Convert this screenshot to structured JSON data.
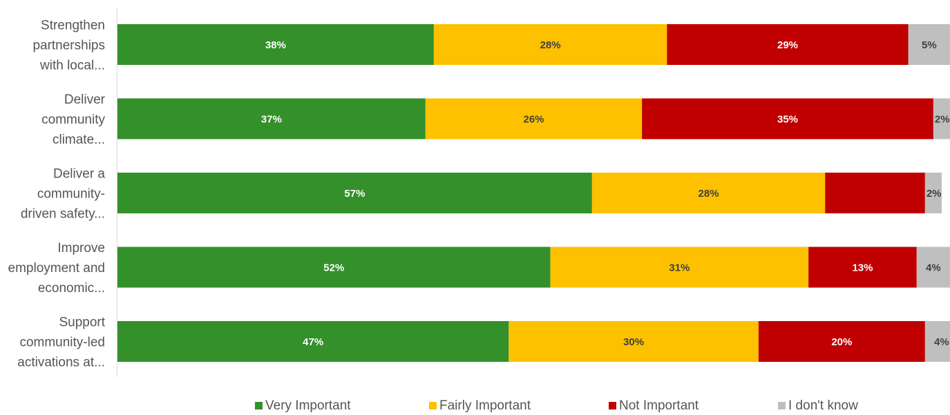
{
  "chart_data": {
    "type": "bar",
    "orientation": "horizontal",
    "stacked": true,
    "categories": [
      [
        "Strengthen",
        "partnerships",
        "with local..."
      ],
      [
        "Deliver",
        "community",
        "climate..."
      ],
      [
        "Deliver a",
        "community-",
        "driven safety..."
      ],
      [
        "Improve",
        "employment and",
        "economic..."
      ],
      [
        "Support",
        "community-led",
        "activations at..."
      ]
    ],
    "series": [
      {
        "name": "Very Important",
        "color": "#34902b",
        "values": [
          38,
          37,
          57,
          52,
          47
        ],
        "labels": [
          "38%",
          "37%",
          "57%",
          "52%",
          "47%"
        ]
      },
      {
        "name": "Fairly Important",
        "color": "#fdc100",
        "values": [
          28,
          26,
          28,
          31,
          30
        ],
        "labels": [
          "28%",
          "26%",
          "28%",
          "31%",
          "30%"
        ]
      },
      {
        "name": "Not Important",
        "color": "#c00000",
        "values": [
          29,
          35,
          12,
          13,
          20
        ],
        "labels": [
          "29%",
          "35%",
          "",
          "13%",
          "20%"
        ]
      },
      {
        "name": "I don't know",
        "color": "#bfbfbf",
        "values": [
          5,
          2,
          2,
          4,
          4
        ],
        "labels": [
          "5%",
          "2%",
          "2%",
          "4%",
          "4%"
        ]
      }
    ],
    "xlim": [
      0,
      100
    ],
    "grid": false,
    "legend": "bottom"
  }
}
